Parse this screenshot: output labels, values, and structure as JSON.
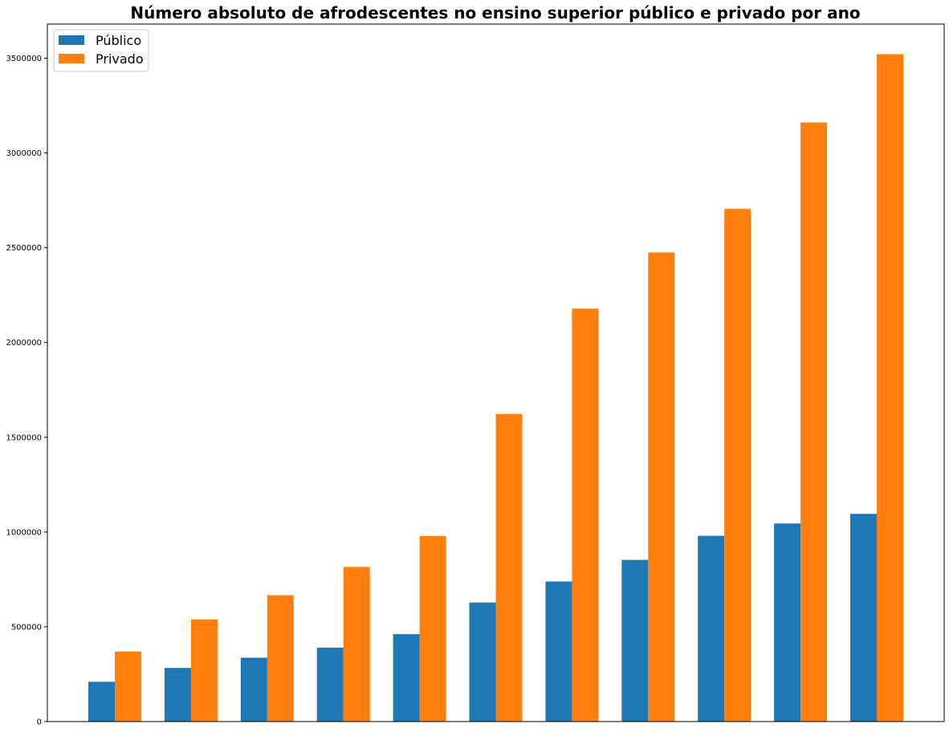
{
  "chart_data": {
    "type": "bar",
    "title": "Número absoluto de afrodescentes no ensino superior público e privado por ano",
    "xlabel": "",
    "ylabel": "",
    "categories": [
      "",
      "",
      "",
      "",
      "",
      "",
      "",
      "",
      "",
      "",
      ""
    ],
    "series": [
      {
        "name": "Público",
        "color": "#1f77b4",
        "values": [
          210000,
          283000,
          337000,
          390000,
          461000,
          628000,
          739000,
          853000,
          980000,
          1045000,
          1096000
        ]
      },
      {
        "name": "Privado",
        "color": "#ff7f0e",
        "values": [
          370000,
          539000,
          667000,
          816000,
          979000,
          1623000,
          2179000,
          2475000,
          2705000,
          3161000,
          3521000
        ]
      }
    ],
    "ylim": [
      0,
      3680000
    ],
    "yticks": [
      0,
      500000,
      1000000,
      1500000,
      2000000,
      2500000,
      3000000,
      3500000
    ],
    "ytick_labels": [
      "0",
      "500000",
      "1000000",
      "1500000",
      "2000000",
      "2500000",
      "3000000",
      "3500000"
    ],
    "grid": false,
    "legend_position": "upper-left"
  }
}
